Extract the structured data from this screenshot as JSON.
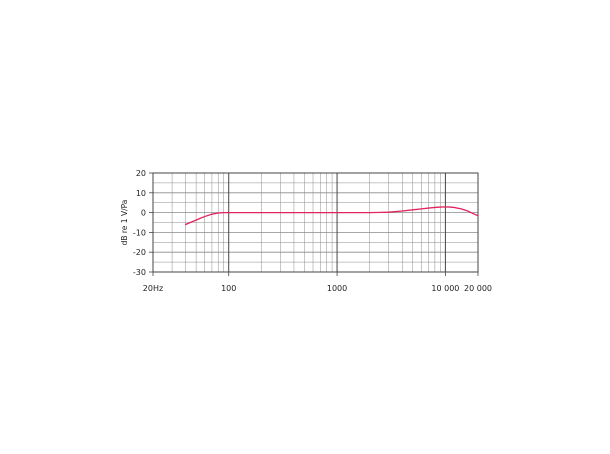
{
  "chart_data": {
    "type": "line",
    "title": "",
    "xlabel": "",
    "ylabel": "dB re 1 V/Pa",
    "x_scale": "log",
    "xlim": [
      20,
      20000
    ],
    "ylim": [
      -30,
      20
    ],
    "x_ticks": [
      {
        "value": 20,
        "label": "20Hz"
      },
      {
        "value": 100,
        "label": "100"
      },
      {
        "value": 1000,
        "label": "1000"
      },
      {
        "value": 10000,
        "label": "10 000"
      },
      {
        "value": 20000,
        "label": "20 000"
      }
    ],
    "y_ticks": [
      {
        "value": 20,
        "label": "20"
      },
      {
        "value": 10,
        "label": "10"
      },
      {
        "value": 0,
        "label": "0"
      },
      {
        "value": -10,
        "label": "-10"
      },
      {
        "value": -20,
        "label": "-20"
      },
      {
        "value": -30,
        "label": "-30"
      }
    ],
    "y_minor_step": 5,
    "grid": true,
    "legend": "none",
    "series": [
      {
        "color": "#e0245e",
        "x": [
          40,
          45,
          50,
          55,
          60,
          70,
          80,
          90,
          100,
          200,
          500,
          1000,
          2000,
          3000,
          4000,
          5000,
          6000,
          7000,
          8000,
          9000,
          10000,
          11000,
          12000,
          14000,
          16000,
          18000,
          20000
        ],
        "y": [
          -6,
          -4.8,
          -3.8,
          -2.8,
          -2.0,
          -0.8,
          -0.2,
          0,
          0,
          0,
          0,
          0,
          0,
          0.2,
          0.8,
          1.4,
          1.9,
          2.3,
          2.6,
          2.8,
          2.9,
          2.8,
          2.6,
          1.9,
          0.9,
          -0.5,
          -1.6
        ]
      }
    ]
  }
}
